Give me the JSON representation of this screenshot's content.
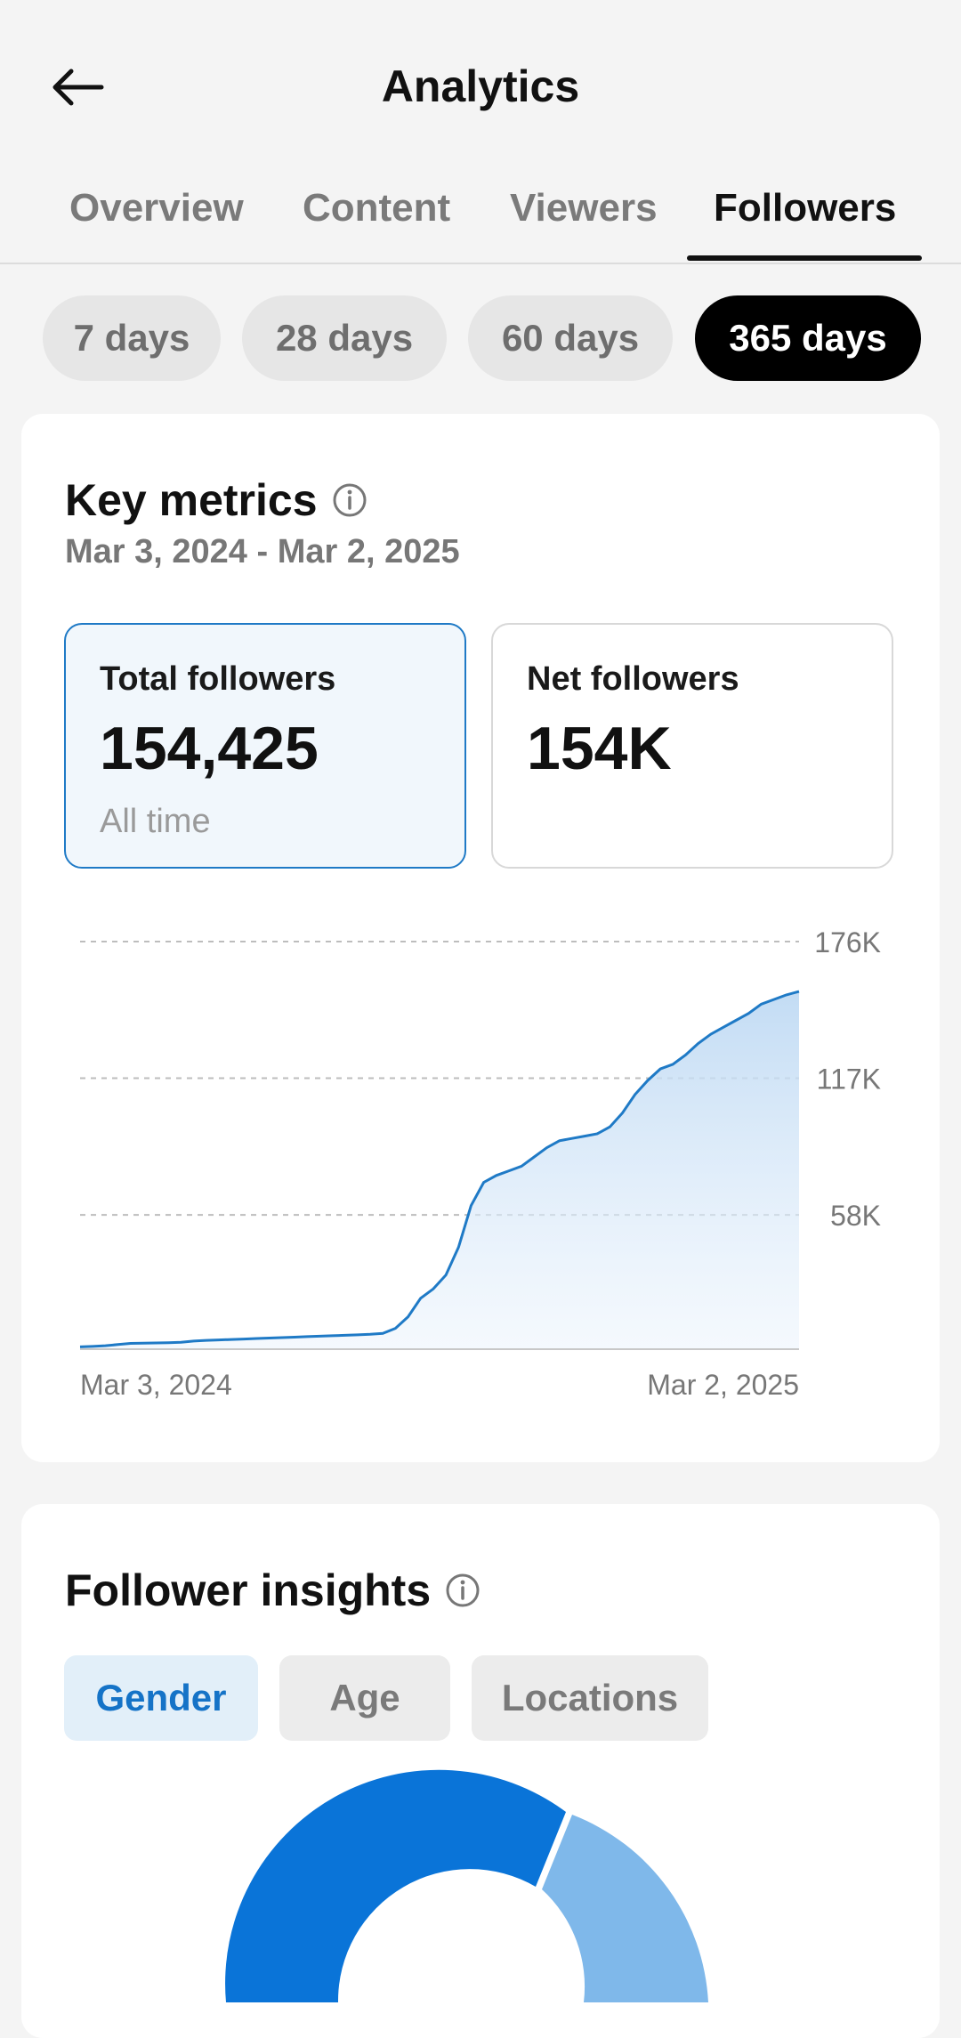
{
  "header": {
    "title": "Analytics",
    "back_icon": "arrow-left-icon"
  },
  "tabs": [
    {
      "label": "Overview",
      "active": false
    },
    {
      "label": "Content",
      "active": false
    },
    {
      "label": "Viewers",
      "active": false
    },
    {
      "label": "Followers",
      "active": true
    }
  ],
  "ranges": [
    {
      "label": "7 days",
      "active": false
    },
    {
      "label": "28 days",
      "active": false
    },
    {
      "label": "60 days",
      "active": false
    },
    {
      "label": "365 days",
      "active": true
    }
  ],
  "key_metrics": {
    "title": "Key metrics",
    "info_icon": "info-icon",
    "date_range": "Mar 3, 2024 - Mar 2, 2025",
    "total": {
      "label": "Total followers",
      "value": "154,425",
      "sub": "All time"
    },
    "net": {
      "label": "Net followers",
      "value": "154K"
    }
  },
  "chart_data": {
    "type": "area",
    "x_labels": [
      "Mar 3, 2024",
      "Mar 2, 2025"
    ],
    "y_ticks": [
      "176K",
      "117K",
      "58K"
    ],
    "ylim": [
      0,
      176000
    ],
    "grid": true,
    "color": "#1f7ac6",
    "values": [
      1000,
      1200,
      1500,
      2000,
      2500,
      2600,
      2700,
      2800,
      3000,
      3500,
      3800,
      4000,
      4200,
      4400,
      4600,
      4800,
      5000,
      5200,
      5400,
      5600,
      5800,
      6000,
      6200,
      6400,
      6800,
      9000,
      14000,
      22000,
      26000,
      32000,
      44000,
      62000,
      72000,
      75000,
      77000,
      79000,
      83000,
      87000,
      90000,
      91000,
      92000,
      93000,
      96000,
      102000,
      110000,
      116000,
      121000,
      123000,
      127000,
      132000,
      136000,
      139000,
      142000,
      145000,
      149000,
      151000,
      153000,
      154425
    ]
  },
  "follower_insights": {
    "title": "Follower insights",
    "info_icon": "info-icon",
    "tabs": [
      {
        "label": "Gender",
        "active": true
      },
      {
        "label": "Age",
        "active": false
      },
      {
        "label": "Locations",
        "active": false
      }
    ],
    "donut_colors": [
      "#0a74d8",
      "#7fb8ea"
    ]
  }
}
